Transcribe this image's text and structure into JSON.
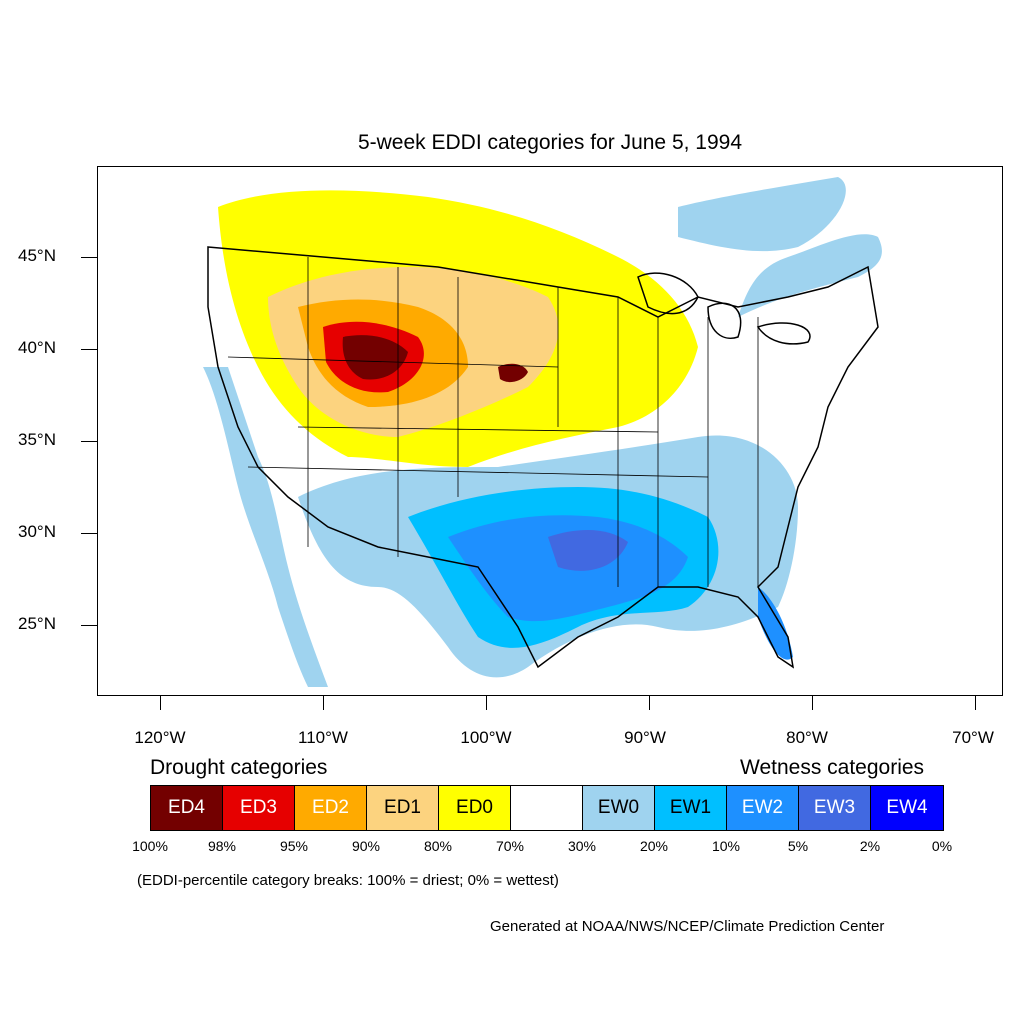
{
  "title": "5-week EDDI categories for June 5, 1994",
  "lat_labels": [
    "45°N",
    "40°N",
    "35°N",
    "30°N",
    "25°N"
  ],
  "lon_labels": [
    "120°W",
    "110°W",
    "100°W",
    "90°W",
    "80°W",
    "70°W"
  ],
  "legend": {
    "drought_heading": "Drought categories",
    "wetness_heading": "Wetness categories",
    "categories": [
      {
        "label": "ED4",
        "color": "#730000",
        "text_color": "#ffffff"
      },
      {
        "label": "ED3",
        "color": "#e60000",
        "text_color": "#ffffff"
      },
      {
        "label": "ED2",
        "color": "#ffaa00",
        "text_color": "#ffffff"
      },
      {
        "label": "ED1",
        "color": "#fcd37f",
        "text_color": "#000000"
      },
      {
        "label": "ED0",
        "color": "#ffff00",
        "text_color": "#000000"
      },
      {
        "label": "",
        "color": "#ffffff",
        "text_color": "#000000"
      },
      {
        "label": "EW0",
        "color": "#9fd3ef",
        "text_color": "#000000"
      },
      {
        "label": "EW1",
        "color": "#00bfff",
        "text_color": "#000000"
      },
      {
        "label": "EW2",
        "color": "#1e90ff",
        "text_color": "#ffffff"
      },
      {
        "label": "EW3",
        "color": "#4169e1",
        "text_color": "#ffffff"
      },
      {
        "label": "EW4",
        "color": "#0000ff",
        "text_color": "#ffffff"
      }
    ],
    "breaks": [
      "100%",
      "98%",
      "95%",
      "90%",
      "80%",
      "70%",
      "30%",
      "20%",
      "10%",
      "5%",
      "2%",
      "0%"
    ]
  },
  "footnote": "(EDDI-percentile category breaks: 100% = driest; 0% = wettest)",
  "credit": "Generated at NOAA/NWS/NCEP/Climate Prediction Center"
}
